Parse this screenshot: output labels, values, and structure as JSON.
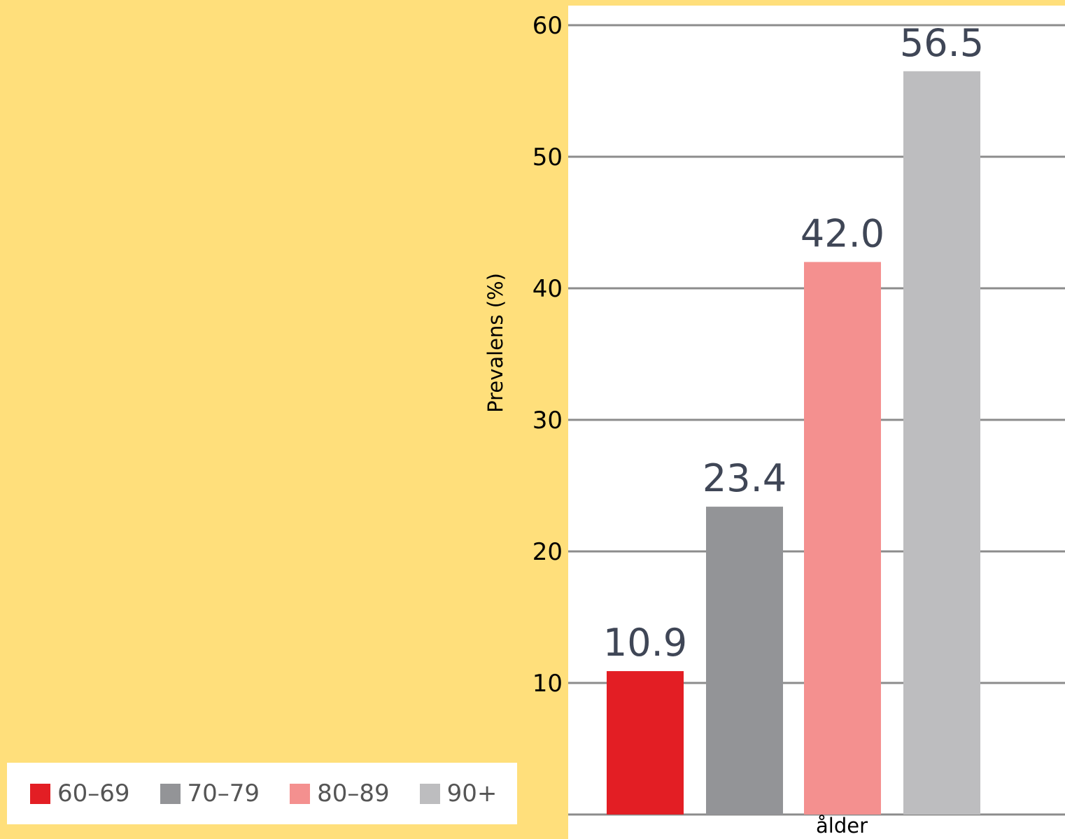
{
  "chart_data": {
    "type": "bar",
    "categories": [
      "60–69",
      "70–79",
      "80–89",
      "90+"
    ],
    "values": [
      10.9,
      23.4,
      42.0,
      56.5
    ],
    "data_labels": [
      "10.9",
      "23.4",
      "42.0",
      "56.5"
    ],
    "ylabel": "Prevalens (%)",
    "xlabel": "ålder",
    "ylim": [
      0,
      60
    ],
    "yticks": [
      10,
      20,
      30,
      40,
      50,
      60
    ],
    "ytick_labels": [
      "10",
      "20",
      "30",
      "40",
      "50",
      "60"
    ],
    "grid": true,
    "legend_position": "bottom-left",
    "colors": [
      "#E31E24",
      "#939497",
      "#F4908F",
      "#BDBDBF"
    ]
  },
  "colors": {
    "page_background": "#FFDF7B",
    "plot_background": "#FFFFFF",
    "gridline": "#8C8C8C",
    "data_label_text": "#3F4656",
    "axis_text": "#000000"
  }
}
